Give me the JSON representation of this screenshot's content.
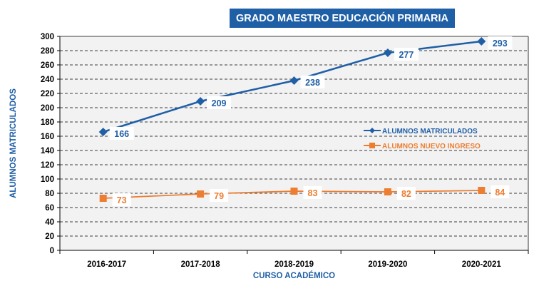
{
  "chart_data": {
    "type": "line",
    "title": "GRADO MAESTRO EDUCACIÓN PRIMARIA",
    "xlabel": "CURSO ACADÉMICO",
    "ylabel": "ALUMNOS MATRICULADOS",
    "categories": [
      "2016-2017",
      "2017-2018",
      "2018-2019",
      "2019-2020",
      "2020-2021"
    ],
    "ylim": [
      0,
      300
    ],
    "yticks": [
      0,
      20,
      40,
      60,
      80,
      100,
      120,
      140,
      160,
      180,
      200,
      220,
      240,
      260,
      280,
      300
    ],
    "grid": true,
    "legend_position": "right",
    "series": [
      {
        "name": "ALUMNOS MATRICULADOS",
        "values": [
          166,
          209,
          238,
          277,
          293
        ],
        "color": "#1f5fa6",
        "marker": "diamond"
      },
      {
        "name": "ALUMNOS NUEVO INGRESO",
        "values": [
          73,
          79,
          83,
          82,
          84
        ],
        "color": "#ed7d31",
        "marker": "square"
      }
    ],
    "plot_background": "#f2f2f2"
  }
}
